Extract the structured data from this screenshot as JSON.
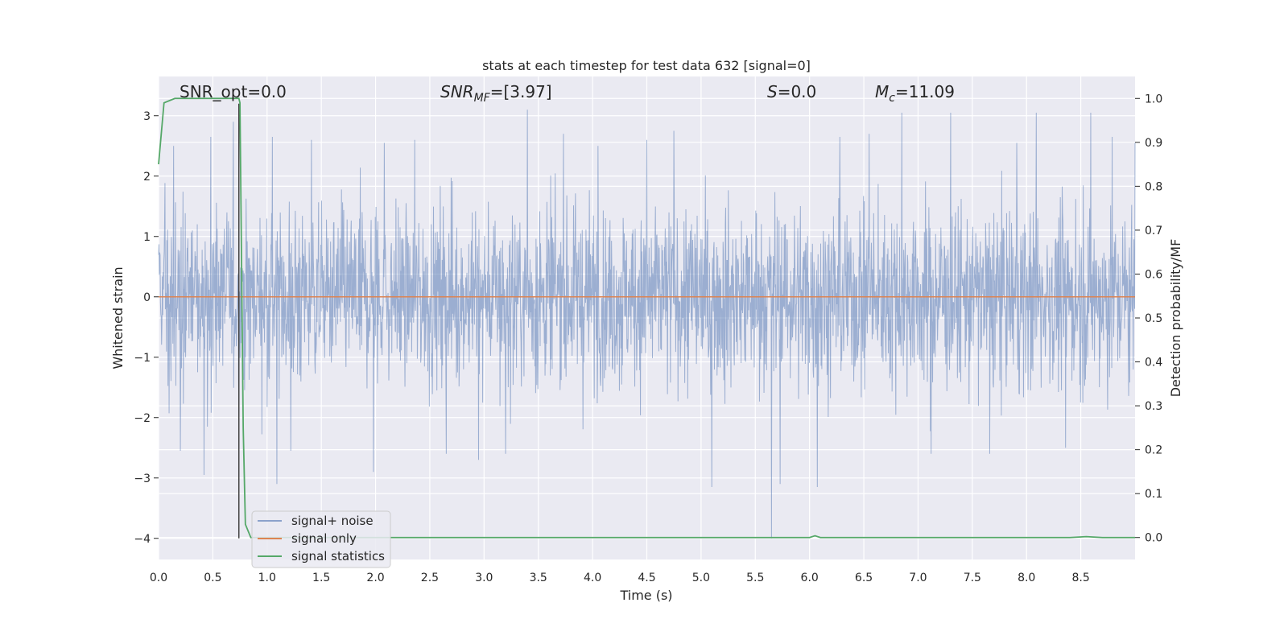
{
  "chart_data": {
    "type": "line",
    "title": "stats at each timestep for test data 632 [signal=0]",
    "xlabel": "Time (s)",
    "ylabel_left": "Whitened strain",
    "ylabel_right": "Detection probability/MF",
    "xlim": [
      0.0,
      9.0
    ],
    "ylim_left": [
      -4.35,
      3.65
    ],
    "ylim_right": [
      -0.05,
      1.05
    ],
    "x_ticks": [
      0.0,
      0.5,
      1.0,
      1.5,
      2.0,
      2.5,
      3.0,
      3.5,
      4.0,
      4.5,
      5.0,
      5.5,
      6.0,
      6.5,
      7.0,
      7.5,
      8.0,
      8.5
    ],
    "x_tick_labels": [
      "0.0",
      "0.5",
      "1.0",
      "1.5",
      "2.0",
      "2.5",
      "3.0",
      "3.5",
      "4.0",
      "4.5",
      "5.0",
      "5.5",
      "6.0",
      "6.5",
      "7.0",
      "7.5",
      "8.0",
      "8.5"
    ],
    "y_left_ticks": [
      3,
      2,
      1,
      0,
      -1,
      -2,
      -3,
      -4
    ],
    "y_left_tick_labels": [
      "3",
      "2",
      "1",
      "0",
      "−1",
      "−2",
      "−3",
      "−4"
    ],
    "y_right_ticks": [
      1.0,
      0.9,
      0.8,
      0.7,
      0.6,
      0.5,
      0.4,
      0.3,
      0.2,
      0.1,
      0.0
    ],
    "y_right_tick_labels": [
      "1.0",
      "0.9",
      "0.8",
      "0.7",
      "0.6",
      "0.5",
      "0.4",
      "0.3",
      "0.2",
      "0.1",
      "0.0"
    ],
    "grid": true,
    "legend_position": "lower-left",
    "annotations": {
      "snr_opt": "SNR_opt=0.0",
      "snr_mf_prefix": "SNR",
      "snr_mf_sub": "MF",
      "snr_mf_value": "=[3.97]",
      "s_symbol": "S",
      "s_value": "=0.0",
      "mc_symbol": "M",
      "mc_sub": "c",
      "mc_value": "=11.09"
    },
    "series": [
      {
        "name": "signal+ noise",
        "color": "#4c72b0",
        "axis": "left",
        "description_style": "dense noise trace, approx. Gaussian, amplitude mostly within ±2.5",
        "peaks": [
          [
            0.14,
            2.5
          ],
          [
            0.2,
            -2.55
          ],
          [
            0.42,
            -2.95
          ],
          [
            0.48,
            2.65
          ],
          [
            0.69,
            2.9
          ],
          [
            1.05,
            2.65
          ],
          [
            1.09,
            -3.1
          ],
          [
            1.22,
            -2.55
          ],
          [
            1.41,
            2.6
          ],
          [
            1.98,
            -2.9
          ],
          [
            2.08,
            2.55
          ],
          [
            2.36,
            2.6
          ],
          [
            2.65,
            -2.6
          ],
          [
            2.95,
            -2.7
          ],
          [
            3.2,
            -2.6
          ],
          [
            3.4,
            3.1
          ],
          [
            3.73,
            2.7
          ],
          [
            4.05,
            2.5
          ],
          [
            4.5,
            2.6
          ],
          [
            4.75,
            2.75
          ],
          [
            5.1,
            -3.15
          ],
          [
            5.65,
            -4.0
          ],
          [
            5.73,
            -3.1
          ],
          [
            6.07,
            -3.15
          ],
          [
            6.28,
            2.65
          ],
          [
            6.55,
            2.7
          ],
          [
            6.85,
            3.05
          ],
          [
            7.12,
            -2.6
          ],
          [
            7.3,
            3.05
          ],
          [
            7.66,
            -2.6
          ],
          [
            7.91,
            2.55
          ],
          [
            8.09,
            3.05
          ],
          [
            8.36,
            -2.5
          ],
          [
            8.59,
            3.05
          ],
          [
            8.79,
            2.65
          ],
          [
            9.0,
            2.55
          ]
        ]
      },
      {
        "name": "signal only",
        "color": "#dd8452",
        "axis": "left",
        "x": [
          0.0,
          9.0
        ],
        "y": [
          0.0,
          0.0
        ]
      },
      {
        "name": "signal statistics",
        "color": "#55a868",
        "axis": "right",
        "x": [
          0.0,
          0.05,
          0.1,
          0.15,
          0.2,
          0.3,
          0.4,
          0.5,
          0.6,
          0.7,
          0.74,
          0.75,
          0.78,
          0.8,
          0.85,
          0.9,
          1.0,
          2.0,
          3.0,
          4.0,
          5.0,
          5.5,
          6.0,
          6.05,
          6.1,
          6.2,
          7.0,
          8.0,
          8.4,
          8.55,
          8.7,
          9.0
        ],
        "y": [
          0.85,
          0.99,
          0.995,
          1.0,
          1.0,
          1.0,
          1.0,
          1.0,
          1.0,
          1.0,
          1.0,
          0.99,
          0.25,
          0.03,
          0.0,
          0.0,
          0.0,
          0.0,
          0.0,
          0.0,
          0.0,
          0.0,
          0.0,
          0.004,
          0.0,
          0.0,
          0.0,
          0.0,
          0.0,
          0.002,
          0.0,
          0.0
        ]
      }
    ],
    "vertical_marker": {
      "x": 0.74,
      "color": "#404040"
    }
  }
}
